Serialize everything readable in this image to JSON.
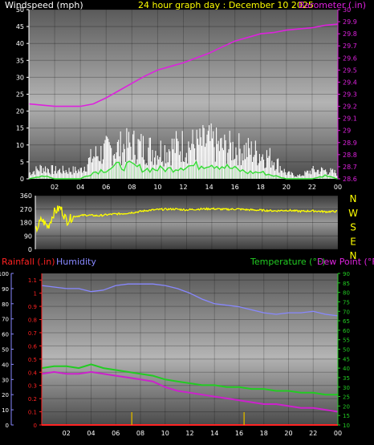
{
  "header": {
    "windspeed_label": "Windspeed (mph)",
    "title": "24 hour graph day : December 10 2025",
    "barometer_label": "Barometer (.in)"
  },
  "colors": {
    "wind_gust": "#ffffff",
    "wind_avg": "#33dd33",
    "barometer": "#dd22dd",
    "direction": "#ffff00",
    "humidity": "#8888ff",
    "temperature": "#22cc22",
    "dew_point": "#cc22cc",
    "rainfall": "#ff2222",
    "rain_rate": "#ccaa00",
    "title": "#ffff00",
    "ticks": "#ffffff"
  },
  "x_ticks": [
    "02",
    "04",
    "06",
    "08",
    "10",
    "12",
    "14",
    "16",
    "18",
    "20",
    "22",
    "00"
  ],
  "chart_data": [
    {
      "type": "line",
      "name": "wind-barometer",
      "title": "24 hour graph day : December 10 2025",
      "ylabel_left": "Windspeed (mph)",
      "ylabel_right": "Barometer (.in)",
      "ylim_left": [
        0,
        50
      ],
      "ylim_right": [
        28.6,
        30.0
      ],
      "left_ticks": [
        "50",
        "45",
        "40",
        "35",
        "30",
        "25",
        "20",
        "15",
        "10",
        "5",
        "0"
      ],
      "right_ticks": [
        "30",
        "29.9",
        "29.8",
        "29.7",
        "29.6",
        "29.5",
        "29.4",
        "29.3",
        "29.2",
        "29.1",
        "29",
        "28.9",
        "28.8",
        "28.7",
        "28.6"
      ],
      "x_hours": [
        0,
        1,
        2,
        3,
        4,
        5,
        6,
        7,
        8,
        9,
        10,
        11,
        12,
        13,
        14,
        15,
        16,
        17,
        18,
        19,
        20,
        21,
        22,
        23,
        24
      ],
      "series": [
        {
          "name": "Barometer",
          "axis": "right",
          "values": [
            29.22,
            29.21,
            29.2,
            29.2,
            29.2,
            29.22,
            29.27,
            29.33,
            29.39,
            29.45,
            29.5,
            29.53,
            29.56,
            29.6,
            29.64,
            29.69,
            29.74,
            29.77,
            29.8,
            29.81,
            29.83,
            29.84,
            29.85,
            29.87,
            29.88
          ]
        },
        {
          "name": "Wind Gust",
          "axis": "left",
          "values": [
            2,
            4,
            3,
            3,
            3,
            8,
            10,
            11,
            12,
            11,
            10,
            11,
            12,
            12,
            13,
            11,
            11,
            10,
            9,
            7,
            2,
            1,
            3,
            3,
            2
          ]
        },
        {
          "name": "Wind Average",
          "axis": "left",
          "values": [
            0,
            1,
            0,
            0,
            0,
            2,
            3,
            4,
            4,
            3,
            3,
            3,
            4,
            4,
            5,
            4,
            3,
            2,
            2,
            1,
            0,
            0,
            0,
            1,
            0
          ]
        }
      ]
    },
    {
      "type": "line",
      "name": "wind-direction",
      "ylim": [
        0,
        360
      ],
      "left_ticks": [
        "360",
        "270",
        "180",
        "90",
        "0"
      ],
      "right_labels": [
        "N",
        "W",
        "S",
        "E",
        "N"
      ],
      "x_hours": [
        0,
        0.5,
        1,
        1.5,
        2,
        2.5,
        3,
        4,
        5,
        6,
        7,
        8,
        9,
        10,
        11,
        12,
        13,
        14,
        15,
        16,
        17,
        18,
        19,
        20,
        21,
        22,
        23,
        24
      ],
      "series": [
        {
          "name": "Direction",
          "values": [
            120,
            200,
            150,
            250,
            280,
            190,
            220,
            230,
            225,
            235,
            240,
            250,
            262,
            268,
            270,
            265,
            270,
            272,
            268,
            270,
            265,
            262,
            258,
            262,
            255,
            258,
            252,
            255
          ]
        }
      ]
    },
    {
      "type": "line",
      "name": "temp-humidity-rain",
      "rainfall_label": "Rainfall (.in)",
      "humidity_label": "Humidity",
      "temperature_label": "Temperature (°F)",
      "dew_point_label": "Dew Point (°F)",
      "humidity_ticks": [
        "100",
        "90",
        "80",
        "70",
        "60",
        "50",
        "40",
        "30",
        "20",
        "10",
        "0"
      ],
      "rain_ticks": [
        "1.1",
        "1",
        "0.9",
        "0.8",
        "0.7",
        "0.6",
        "0.5",
        "0.4",
        "0.3",
        "0.2",
        "0.1",
        "0"
      ],
      "temp_ticks": [
        "90",
        "85",
        "80",
        "75",
        "70",
        "65",
        "60",
        "55",
        "50",
        "45",
        "40",
        "35",
        "30",
        "25",
        "20",
        "15",
        "10"
      ],
      "ylim_humidity": [
        0,
        100
      ],
      "ylim_rain": [
        0,
        1.15
      ],
      "ylim_temp": [
        10,
        90
      ],
      "x_hours": [
        0,
        1,
        2,
        3,
        4,
        5,
        6,
        7,
        8,
        9,
        10,
        11,
        12,
        13,
        14,
        15,
        16,
        17,
        18,
        19,
        20,
        21,
        22,
        23,
        24
      ],
      "series": [
        {
          "name": "Humidity",
          "axis": "humidity",
          "values": [
            92,
            91,
            90,
            90,
            88,
            89,
            92,
            93,
            93,
            93,
            92,
            90,
            87,
            83,
            80,
            79,
            78,
            76,
            74,
            73,
            74,
            74,
            75,
            73,
            72
          ]
        },
        {
          "name": "Temperature",
          "axis": "temp",
          "values": [
            40,
            41,
            41,
            40,
            42,
            40,
            39,
            38,
            37,
            36,
            34,
            33,
            32,
            31,
            31,
            30,
            30,
            29,
            29,
            28,
            28,
            27,
            27,
            26,
            26
          ]
        },
        {
          "name": "Dew Point",
          "axis": "temp",
          "values": [
            37,
            38,
            37,
            37,
            38,
            37,
            36,
            35,
            34,
            33,
            30,
            28,
            27,
            26,
            25,
            24,
            23,
            22,
            21,
            21,
            20,
            19,
            19,
            18,
            17
          ]
        },
        {
          "name": "Rainfall",
          "axis": "rain",
          "values": [
            0,
            0,
            0,
            0,
            0,
            0,
            0,
            0,
            0,
            0,
            0,
            0,
            0,
            0,
            0,
            0,
            0,
            0,
            0,
            0,
            0,
            0,
            0,
            0,
            0
          ]
        }
      ],
      "rain_rate_hours": [
        7.3,
        16.4
      ]
    }
  ]
}
